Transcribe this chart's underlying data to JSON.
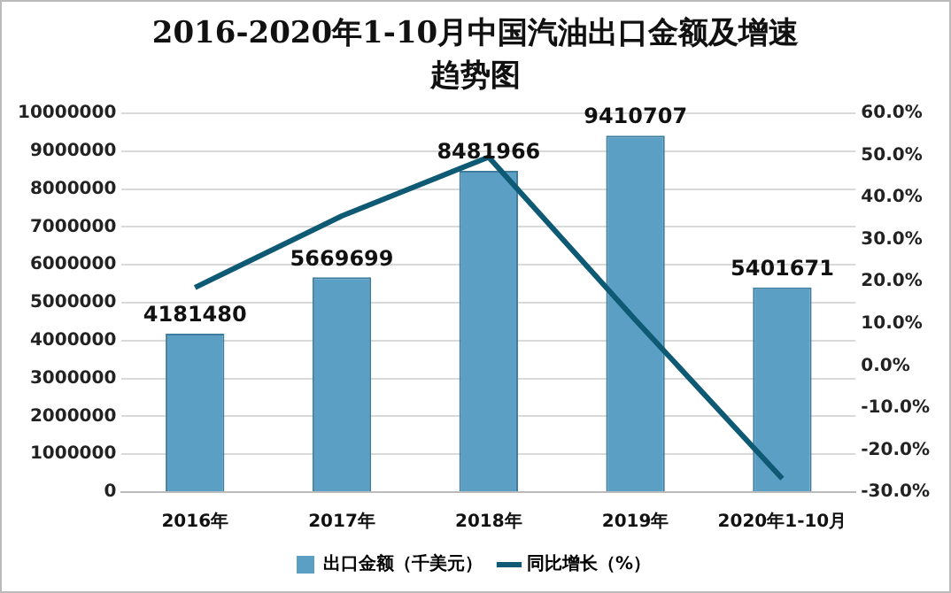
{
  "chart_data": {
    "type": "bar",
    "title": "2016-2020年1-10月中国汽油出口金额及增速趋势图",
    "categories": [
      "2016年",
      "2017年",
      "2018年",
      "2019年",
      "2020年1-10月"
    ],
    "series": [
      {
        "name": "出口金额（千美元）",
        "color": "#5b9fc4",
        "values": [
          4181480,
          5669699,
          8481966,
          9410707,
          5401671
        ],
        "value_labels": [
          "4181480",
          "5669699",
          "8481966",
          "9410707",
          "5401671"
        ]
      },
      {
        "name": "同比增长（%）",
        "type": "line",
        "axis": "y2",
        "color": "#0e5a75",
        "values": [
          18.6,
          35.6,
          49.6,
          10.9,
          -26.8
        ]
      }
    ],
    "ylim": [
      0,
      10000000
    ],
    "yticks": [
      0,
      1000000,
      2000000,
      3000000,
      4000000,
      5000000,
      6000000,
      7000000,
      8000000,
      9000000,
      10000000
    ],
    "y2lim": [
      -30,
      60
    ],
    "y2ticks": [
      {
        "value": -30,
        "label": "-30.0%"
      },
      {
        "value": -20,
        "label": "-20.0%"
      },
      {
        "value": -10,
        "label": "-10.0%"
      },
      {
        "value": 0,
        "label": "0.0%"
      },
      {
        "value": 10,
        "label": "10.0%"
      },
      {
        "value": 20,
        "label": "20.0%"
      },
      {
        "value": 30,
        "label": "30.0%"
      },
      {
        "value": 40,
        "label": "40.0%"
      },
      {
        "value": 50,
        "label": "50.0%"
      },
      {
        "value": 60,
        "label": "60.0%"
      }
    ],
    "grid": "y",
    "legend": "bottom",
    "marker": "none"
  }
}
